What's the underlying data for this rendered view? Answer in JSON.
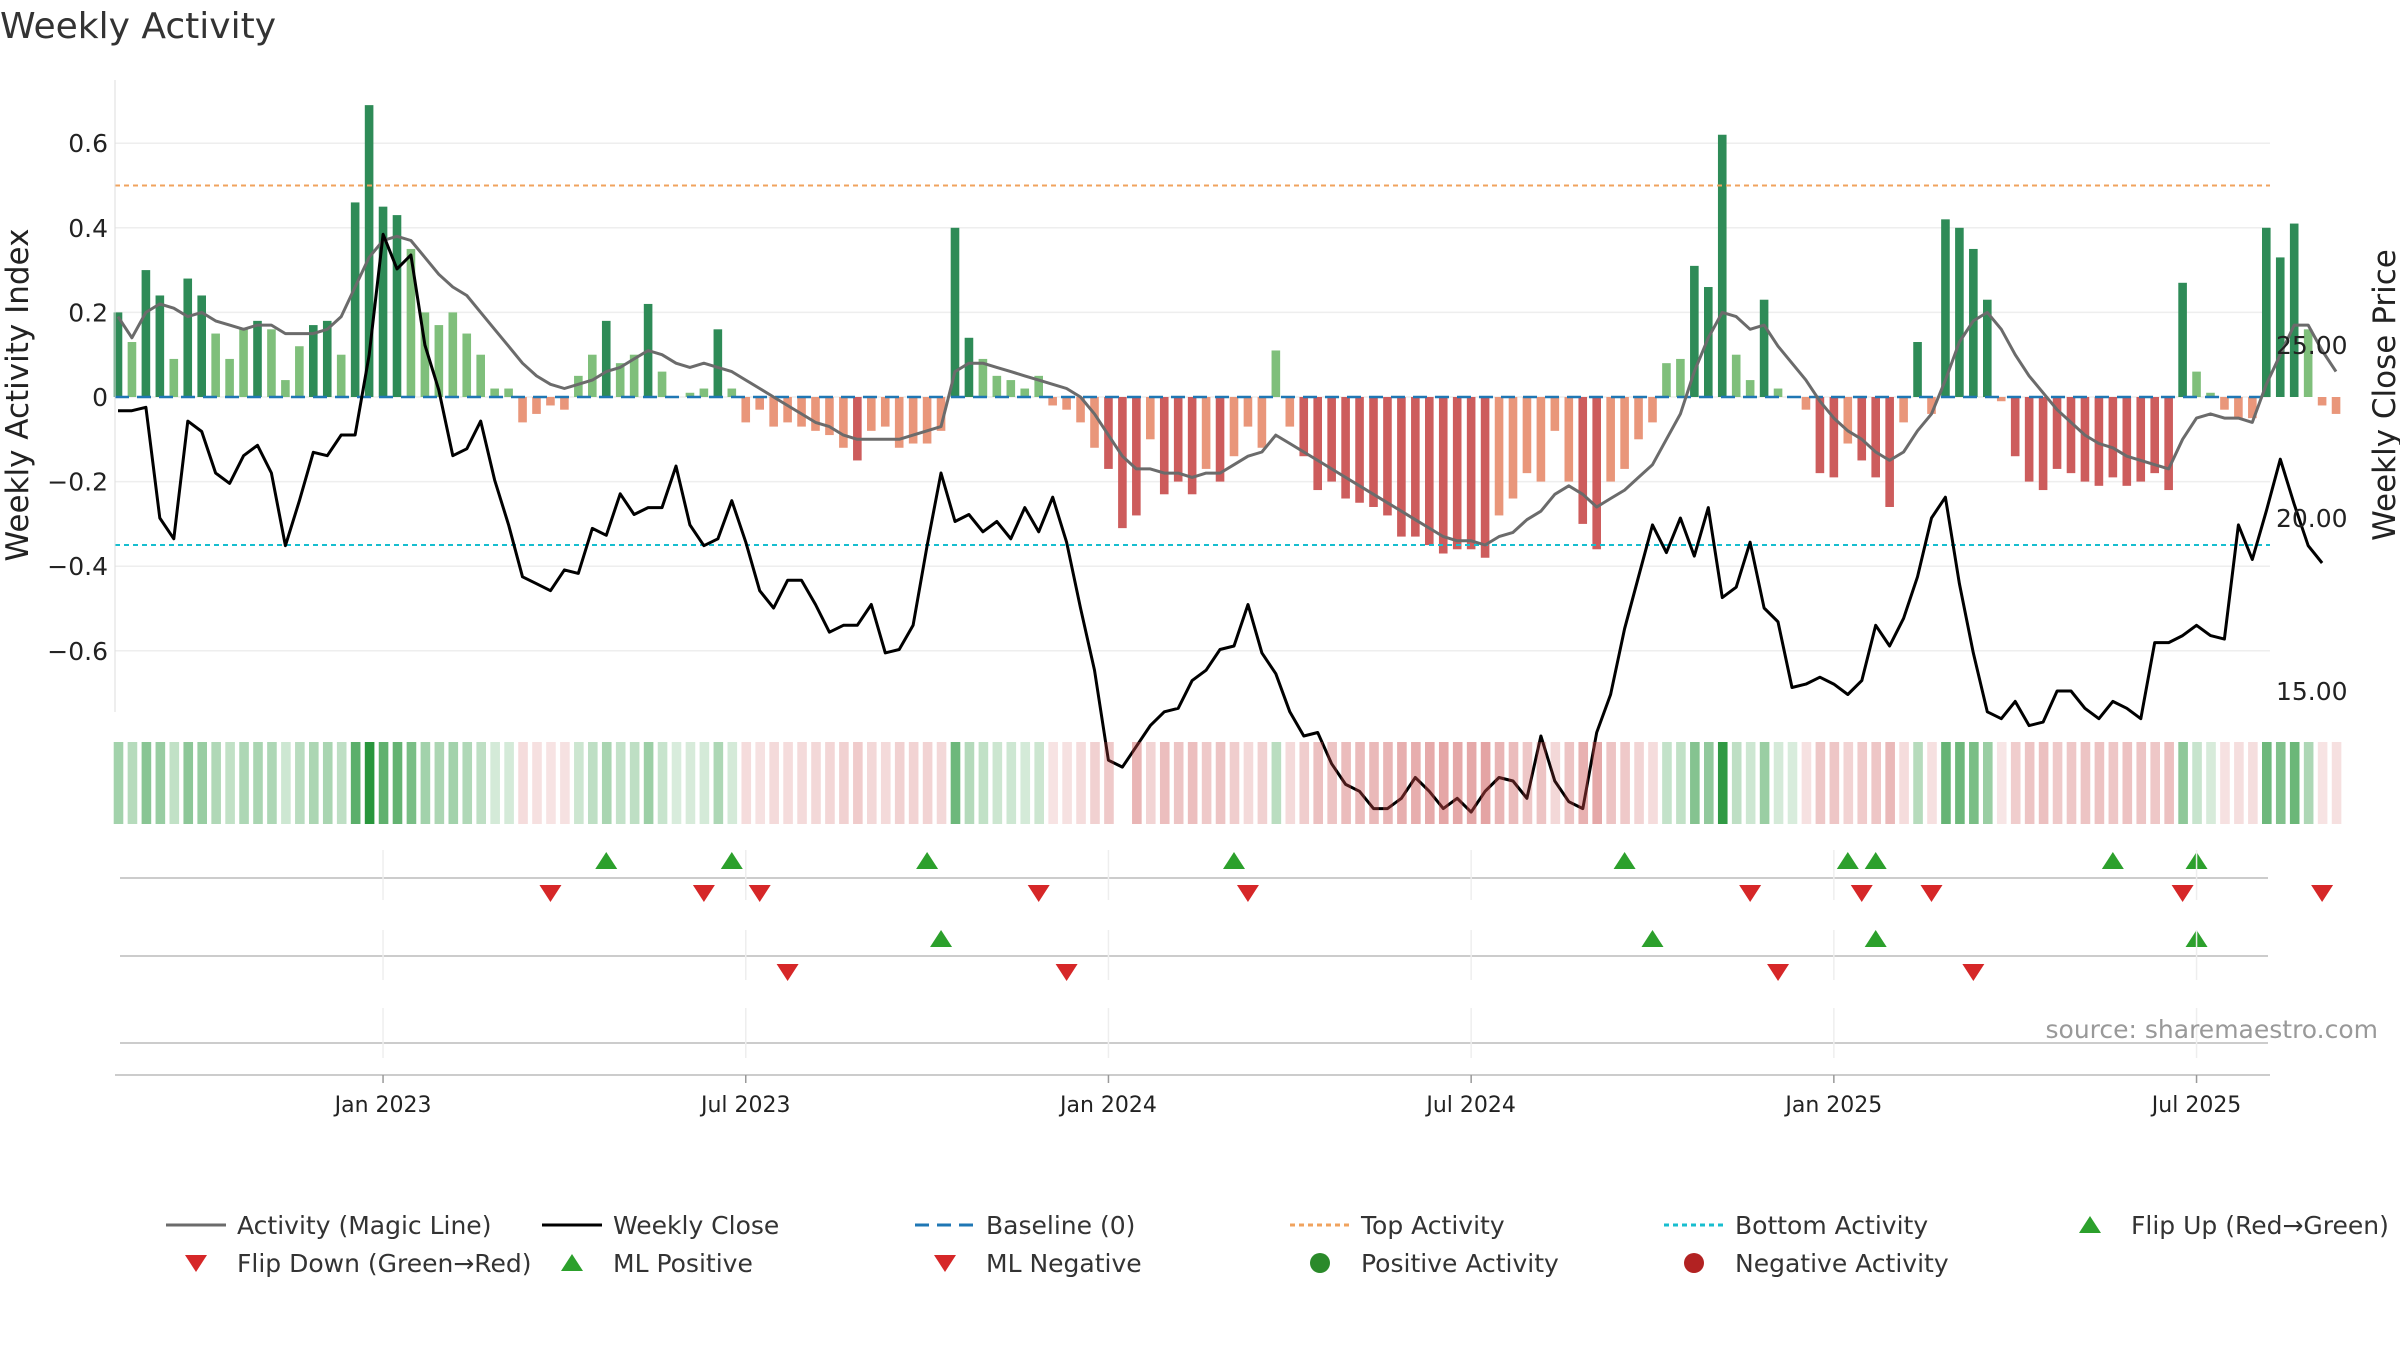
{
  "chart_data": {
    "type": "bar",
    "title": "Weekly Activity",
    "ylabel": "Weekly Activity Index",
    "y2label": "Weekly Close Price",
    "ylim": [
      -0.75,
      0.75
    ],
    "y2lim": [
      11,
      29
    ],
    "y_ticks": [
      {
        "value": 0.6,
        "label": "0.6"
      },
      {
        "value": 0.4,
        "label": "0.4"
      },
      {
        "value": 0.2,
        "label": "0.2"
      },
      {
        "value": 0,
        "label": "0"
      },
      {
        "value": -0.2,
        "label": "−0.2"
      },
      {
        "value": -0.4,
        "label": "−0.4"
      },
      {
        "value": -0.6,
        "label": "−0.6"
      }
    ],
    "y2_ticks": [
      {
        "value": 25,
        "label": "25.00"
      },
      {
        "value": 20,
        "label": "20.00"
      },
      {
        "value": 15,
        "label": "15.00"
      }
    ],
    "x_ticks": [
      {
        "week": 19,
        "label": "Jan 2023"
      },
      {
        "week": 45,
        "label": "Jul 2023"
      },
      {
        "week": 71,
        "label": "Jan 2024"
      },
      {
        "week": 97,
        "label": "Jul 2024"
      },
      {
        "week": 123,
        "label": "Jan 2025"
      },
      {
        "week": 149,
        "label": "Jul 2025"
      }
    ],
    "top_activity": 0.5,
    "bottom_activity": -0.35,
    "activity": [
      0.2,
      0.13,
      0.3,
      0.24,
      0.09,
      0.28,
      0.24,
      0.15,
      0.09,
      0.16,
      0.18,
      0.16,
      0.04,
      0.12,
      0.17,
      0.18,
      0.1,
      0.46,
      0.69,
      0.45,
      0.43,
      0.35,
      0.2,
      0.17,
      0.2,
      0.15,
      0.1,
      0.02,
      0.02,
      -0.06,
      -0.04,
      -0.02,
      -0.03,
      0.05,
      0.1,
      0.18,
      0.08,
      0.1,
      0.22,
      0.06,
      0,
      0.01,
      0.02,
      0.16,
      0.02,
      -0.06,
      -0.03,
      -0.07,
      -0.06,
      -0.07,
      -0.08,
      -0.09,
      -0.12,
      -0.15,
      -0.08,
      -0.07,
      -0.12,
      -0.11,
      -0.11,
      -0.08,
      0.4,
      0.14,
      0.09,
      0.05,
      0.04,
      0.02,
      0.05,
      -0.02,
      -0.03,
      -0.06,
      -0.12,
      -0.17,
      -0.31,
      -0.28,
      -0.1,
      -0.23,
      -0.2,
      -0.23,
      -0.17,
      -0.2,
      -0.14,
      -0.07,
      -0.12,
      0.11,
      -0.07,
      -0.14,
      -0.22,
      -0.2,
      -0.24,
      -0.25,
      -0.26,
      -0.28,
      -0.33,
      -0.33,
      -0.35,
      -0.37,
      -0.36,
      -0.36,
      -0.38,
      -0.28,
      -0.24,
      -0.18,
      -0.2,
      -0.08,
      -0.2,
      -0.3,
      -0.36,
      -0.2,
      -0.17,
      -0.1,
      -0.06,
      0.08,
      0.09,
      0.31,
      0.26,
      0.62,
      0.1,
      0.04,
      0.23,
      0.02,
      0,
      -0.03,
      -0.18,
      -0.19,
      -0.11,
      -0.15,
      -0.19,
      -0.26,
      -0.06,
      0.13,
      -0.04,
      0.42,
      0.4,
      0.35,
      0.23,
      -0.01,
      -0.14,
      -0.2,
      -0.22,
      -0.17,
      -0.18,
      -0.2,
      -0.21,
      -0.19,
      -0.21,
      -0.2,
      -0.18,
      -0.22,
      0.27,
      0.06,
      0.01,
      -0.03,
      -0.05,
      -0.05,
      0.4,
      0.33,
      0.41,
      0.16,
      -0.02,
      -0.04
    ],
    "magic_line": [
      0.19,
      0.14,
      0.2,
      0.22,
      0.21,
      0.19,
      0.2,
      0.18,
      0.17,
      0.16,
      0.17,
      0.17,
      0.15,
      0.15,
      0.15,
      0.16,
      0.19,
      0.26,
      0.33,
      0.37,
      0.38,
      0.37,
      0.33,
      0.29,
      0.26,
      0.24,
      0.2,
      0.16,
      0.12,
      0.08,
      0.05,
      0.03,
      0.02,
      0.03,
      0.04,
      0.06,
      0.07,
      0.09,
      0.11,
      0.1,
      0.08,
      0.07,
      0.08,
      0.07,
      0.06,
      0.04,
      0.02,
      0,
      -0.02,
      -0.04,
      -0.06,
      -0.07,
      -0.09,
      -0.1,
      -0.1,
      -0.1,
      -0.1,
      -0.09,
      -0.08,
      -0.07,
      0.06,
      0.08,
      0.08,
      0.07,
      0.06,
      0.05,
      0.04,
      0.03,
      0.02,
      0,
      -0.04,
      -0.09,
      -0.14,
      -0.17,
      -0.17,
      -0.18,
      -0.18,
      -0.19,
      -0.18,
      -0.18,
      -0.16,
      -0.14,
      -0.13,
      -0.09,
      -0.11,
      -0.13,
      -0.15,
      -0.17,
      -0.19,
      -0.21,
      -0.23,
      -0.25,
      -0.27,
      -0.29,
      -0.31,
      -0.33,
      -0.34,
      -0.34,
      -0.35,
      -0.33,
      -0.32,
      -0.29,
      -0.27,
      -0.23,
      -0.21,
      -0.23,
      -0.26,
      -0.24,
      -0.22,
      -0.19,
      -0.16,
      -0.1,
      -0.04,
      0.06,
      0.14,
      0.2,
      0.19,
      0.16,
      0.17,
      0.12,
      0.08,
      0.04,
      -0.01,
      -0.05,
      -0.08,
      -0.1,
      -0.13,
      -0.15,
      -0.13,
      -0.08,
      -0.04,
      0.04,
      0.13,
      0.18,
      0.2,
      0.16,
      0.1,
      0.05,
      0.01,
      -0.03,
      -0.06,
      -0.09,
      -0.11,
      -0.12,
      -0.14,
      -0.15,
      -0.16,
      -0.17,
      -0.1,
      -0.05,
      -0.04,
      -0.05,
      -0.05,
      -0.06,
      0.03,
      0.1,
      0.17,
      0.17,
      0.11,
      0.06
    ],
    "weekly_close": [
      23.1,
      23.1,
      23.2,
      20,
      19.4,
      22.8,
      22.5,
      21.3,
      21,
      21.8,
      22.1,
      21.3,
      19.2,
      20.5,
      21.9,
      21.8,
      22.4,
      22.4,
      24.7,
      28.2,
      27.2,
      27.6,
      25,
      23.7,
      21.8,
      22,
      22.8,
      21.1,
      19.8,
      18.3,
      18.1,
      17.9,
      18.5,
      18.4,
      19.7,
      19.5,
      20.7,
      20.1,
      20.3,
      20.3,
      21.5,
      19.8,
      19.2,
      19.4,
      20.5,
      19.3,
      17.9,
      17.4,
      18.2,
      18.2,
      17.5,
      16.7,
      16.9,
      16.9,
      17.5,
      16.1,
      16.2,
      16.9,
      19.2,
      21.3,
      19.9,
      20.1,
      19.6,
      19.9,
      19.4,
      20.3,
      19.6,
      20.6,
      19.3,
      17.4,
      15.6,
      13,
      12.8,
      13.4,
      14,
      14.4,
      14.5,
      15.3,
      15.6,
      16.2,
      16.3,
      17.5,
      16.1,
      15.5,
      14.4,
      13.7,
      13.8,
      12.9,
      12.3,
      12.1,
      11.6,
      11.6,
      11.9,
      12.5,
      12.1,
      11.6,
      11.9,
      11.5,
      12.1,
      12.5,
      12.4,
      11.9,
      13.7,
      12.4,
      11.8,
      11.6,
      13.8,
      14.9,
      16.8,
      18.3,
      19.8,
      19,
      20,
      18.9,
      20.3,
      17.7,
      18,
      19.3,
      17.4,
      17,
      15.1,
      15.2,
      15.4,
      15.2,
      14.9,
      15.3,
      16.9,
      16.3,
      17.1,
      18.3,
      20,
      20.6,
      18.1,
      16.1,
      14.4,
      14.2,
      14.7,
      14,
      14.1,
      15,
      15,
      14.5,
      14.2,
      14.7,
      14.5,
      14.2,
      16.4,
      16.4,
      16.6,
      16.9,
      16.6,
      16.5,
      19.8,
      18.8,
      20.2,
      21.7,
      20.4,
      19.2,
      18.7
    ],
    "ribbon_gap_week": 72,
    "flip_up": [
      35,
      44,
      58,
      80,
      108,
      124,
      126,
      143,
      149
    ],
    "flip_down": [
      31,
      42,
      46,
      66,
      81,
      117,
      125,
      130,
      148,
      158
    ],
    "ml_positive": [
      59,
      110,
      126,
      149
    ],
    "ml_negative": [
      48,
      68,
      119,
      133
    ],
    "source_note": "source: sharemaestro.com",
    "legend": [
      {
        "label": "Activity (Magic Line)",
        "kind": "line",
        "color": "#6b6b6b",
        "dash": "none"
      },
      {
        "label": "Weekly Close",
        "kind": "line",
        "color": "#000000",
        "dash": "none"
      },
      {
        "label": "Baseline (0)",
        "kind": "line",
        "color": "#1f77b4",
        "dash": "14,8"
      },
      {
        "label": "Top Activity",
        "kind": "line",
        "color": "#f0a35e",
        "dash": "5,4"
      },
      {
        "label": "Bottom Activity",
        "kind": "line",
        "color": "#17becf",
        "dash": "5,4"
      },
      {
        "label": "Flip Up (Red→Green)",
        "kind": "tri-up",
        "color": "#2ca02c",
        "dash": "none"
      },
      {
        "label": "Flip Down (Green→Red)",
        "kind": "tri-down",
        "color": "#d62728",
        "dash": "none"
      },
      {
        "label": "ML Positive",
        "kind": "tri-up",
        "color": "#2ca02c",
        "dash": "none"
      },
      {
        "label": "ML Negative",
        "kind": "tri-down",
        "color": "#d62728",
        "dash": "none"
      },
      {
        "label": "Positive Activity",
        "kind": "dot",
        "color": "#2a8a2a",
        "dash": "none"
      },
      {
        "label": "Negative Activity",
        "kind": "dot",
        "color": "#b22222",
        "dash": "none"
      }
    ],
    "colors": {
      "pos_strong": "#2e8b57",
      "pos_weak": "#7fbf7b",
      "neg_strong": "#cd5c5c",
      "neg_weak": "#e9967a",
      "magic_line": "#6b6b6b",
      "close": "#000000",
      "baseline": "#1f77b4",
      "top": "#f0a35e",
      "bottom": "#17becf",
      "marker_up": "#2ca02c",
      "marker_down": "#d62728"
    }
  }
}
